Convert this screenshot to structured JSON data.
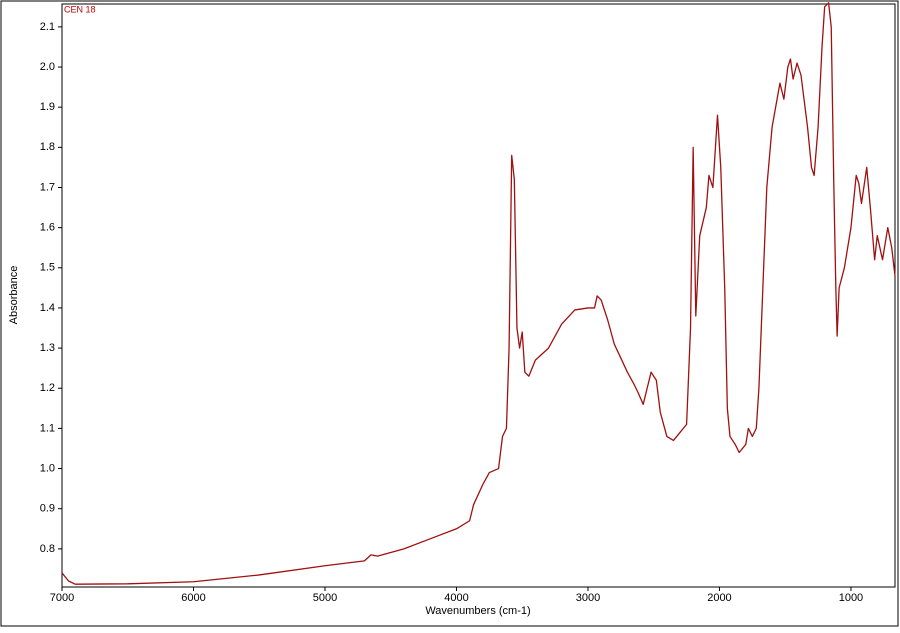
{
  "chart_data": {
    "type": "line",
    "annotation": "CEN 18",
    "xlabel": "Wavenumbers (cm-1)",
    "ylabel": "Absorbance",
    "color": "#a01010",
    "xlim": [
      7000,
      665
    ],
    "ylim": [
      0.705,
      2.157
    ],
    "xticks": [
      7000,
      6000,
      5000,
      4000,
      3000,
      2000,
      1000
    ],
    "yticks": [
      0.8,
      0.9,
      {
        "value": 1,
        "label": "1.0"
      },
      1.1,
      1.2,
      1.3,
      1.4,
      1.5,
      1.6,
      1.7,
      1.8,
      1.9,
      {
        "value": 2,
        "label": "2.0"
      },
      2.1
    ],
    "x": [
      7000,
      6950,
      6900,
      6500,
      6000,
      5500,
      5000,
      4700,
      4650,
      4600,
      4400,
      4200,
      4000,
      3900,
      3870,
      3800,
      3750,
      3680,
      3650,
      3620,
      3600,
      3580,
      3560,
      3540,
      3520,
      3500,
      3480,
      3450,
      3400,
      3300,
      3200,
      3100,
      3000,
      2950,
      2930,
      2900,
      2850,
      2800,
      2700,
      2650,
      2620,
      2580,
      2550,
      2520,
      2480,
      2450,
      2400,
      2350,
      2300,
      2250,
      2220,
      2200,
      2180,
      2150,
      2100,
      2080,
      2050,
      2015,
      1990,
      1960,
      1940,
      1920,
      1880,
      1850,
      1800,
      1780,
      1750,
      1720,
      1700,
      1670,
      1640,
      1600,
      1540,
      1510,
      1480,
      1460,
      1440,
      1410,
      1380,
      1330,
      1300,
      1280,
      1250,
      1220,
      1200,
      1170,
      1150,
      1130,
      1115,
      1105,
      1090,
      1050,
      1000,
      960,
      940,
      920,
      880,
      850,
      820,
      800,
      760,
      720,
      690,
      665
    ],
    "values": [
      0.74,
      0.72,
      0.712,
      0.713,
      0.718,
      0.735,
      0.758,
      0.77,
      0.785,
      0.782,
      0.8,
      0.825,
      0.85,
      0.87,
      0.91,
      0.96,
      0.99,
      1.0,
      1.08,
      1.1,
      1.3,
      1.78,
      1.72,
      1.35,
      1.3,
      1.34,
      1.24,
      1.23,
      1.27,
      1.3,
      1.36,
      1.395,
      1.4,
      1.4,
      1.43,
      1.42,
      1.37,
      1.31,
      1.24,
      1.21,
      1.19,
      1.16,
      1.2,
      1.24,
      1.22,
      1.14,
      1.08,
      1.07,
      1.09,
      1.11,
      1.35,
      1.8,
      1.38,
      1.58,
      1.65,
      1.73,
      1.7,
      1.88,
      1.75,
      1.45,
      1.15,
      1.08,
      1.06,
      1.04,
      1.06,
      1.1,
      1.08,
      1.1,
      1.2,
      1.45,
      1.7,
      1.85,
      1.96,
      1.92,
      2.0,
      2.02,
      1.97,
      2.01,
      1.98,
      1.85,
      1.75,
      1.73,
      1.85,
      2.05,
      2.15,
      2.16,
      2.1,
      1.7,
      1.45,
      1.33,
      1.45,
      1.5,
      1.6,
      1.73,
      1.71,
      1.66,
      1.75,
      1.64,
      1.52,
      1.58,
      1.52,
      1.6,
      1.55,
      1.48
    ]
  }
}
